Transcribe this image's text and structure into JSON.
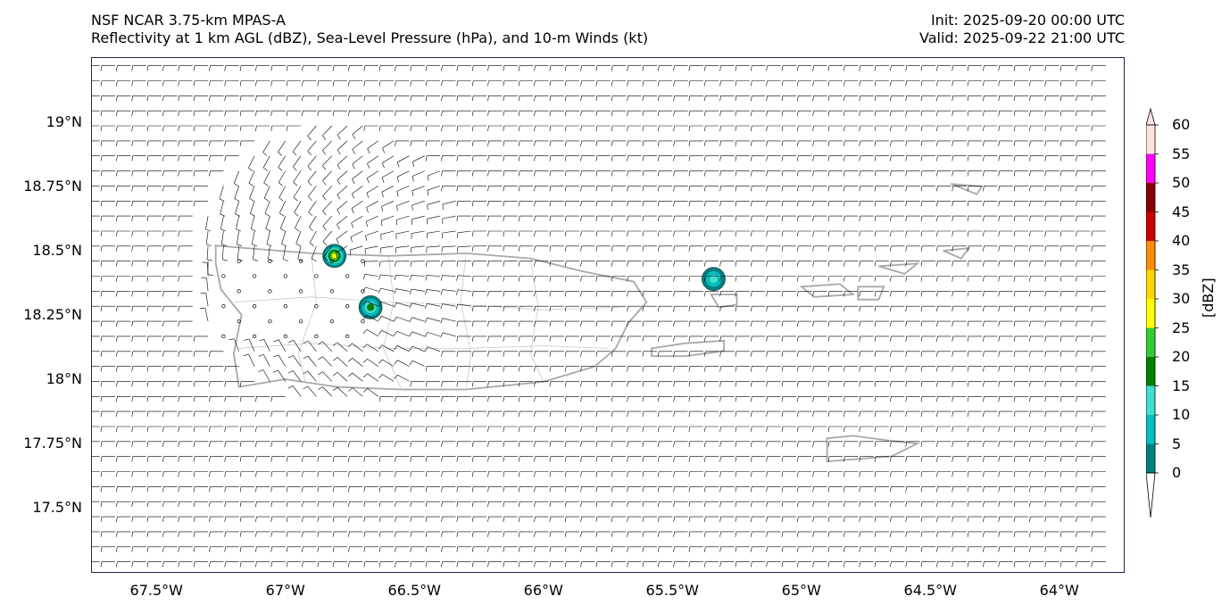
{
  "header": {
    "title_line1": "NSF NCAR 3.75-km MPAS-A",
    "title_line2": "Reflectivity at 1 km AGL (dBZ), Sea-Level Pressure (hPa), and 10-m Winds (kt)",
    "init": "Init: 2025-09-20 00:00 UTC",
    "valid": "Valid: 2025-09-22 21:00 UTC"
  },
  "map": {
    "lon_range": [
      -67.75,
      -63.75
    ],
    "lat_range": [
      17.25,
      19.25
    ],
    "y_ticks": [
      {
        "value": 19.0,
        "label": "19°N"
      },
      {
        "value": 18.75,
        "label": "18.75°N"
      },
      {
        "value": 18.5,
        "label": "18.5°N"
      },
      {
        "value": 18.25,
        "label": "18.25°N"
      },
      {
        "value": 18.0,
        "label": "18°N"
      },
      {
        "value": 17.75,
        "label": "17.75°N"
      },
      {
        "value": 17.5,
        "label": "17.5°N"
      }
    ],
    "x_ticks": [
      {
        "value": -67.5,
        "label": "67.5°W"
      },
      {
        "value": -67.0,
        "label": "67°W"
      },
      {
        "value": -66.5,
        "label": "66.5°W"
      },
      {
        "value": -66.0,
        "label": "66°W"
      },
      {
        "value": -65.5,
        "label": "65.5°W"
      },
      {
        "value": -65.0,
        "label": "65°W"
      },
      {
        "value": -64.5,
        "label": "64.5°W"
      },
      {
        "value": -64.0,
        "label": "64°W"
      }
    ],
    "colors": {
      "coast": "#a8a8a8",
      "border": "#c8c8c8",
      "barb": "#000000",
      "frame": "#1b2a44"
    },
    "storm_cells": [
      {
        "lon": -66.81,
        "lat": 18.48,
        "peak_dbz": 30
      },
      {
        "lon": -66.67,
        "lat": 18.28,
        "peak_dbz": 20
      },
      {
        "lon": -65.34,
        "lat": 18.39,
        "peak_dbz": 15
      }
    ]
  },
  "colorbar": {
    "title": "[dBZ]",
    "levels": [
      0,
      5,
      10,
      15,
      20,
      25,
      30,
      35,
      40,
      45,
      50,
      55,
      60
    ],
    "labels": [
      "0",
      "5",
      "10",
      "15",
      "20",
      "25",
      "30",
      "35",
      "40",
      "45",
      "50",
      "55",
      "60"
    ],
    "colors": [
      "#008080",
      "#00c0c0",
      "#40e0d0",
      "#008000",
      "#32cd32",
      "#ffff00",
      "#ffd700",
      "#ff8c00",
      "#cc0000",
      "#8b0000",
      "#ff00ff",
      "#ffe4e1"
    ]
  }
}
